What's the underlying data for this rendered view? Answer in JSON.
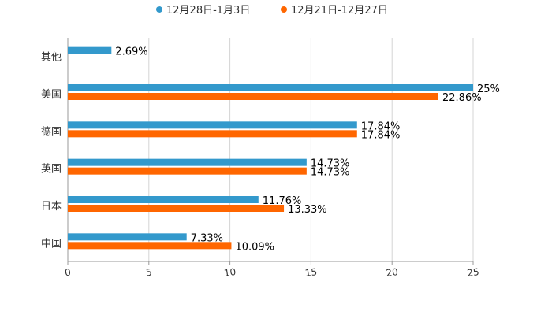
{
  "chart_data": {
    "type": "bar",
    "orientation": "horizontal",
    "categories": [
      "其他",
      "美国",
      "德国",
      "英国",
      "日本",
      "中国"
    ],
    "series": [
      {
        "name": "12月28日-1月3日",
        "color": "#3399cc",
        "values": [
          2.69,
          25,
          17.84,
          14.73,
          11.76,
          7.33
        ],
        "labels": [
          "2.69%",
          "25%",
          "17.84%",
          "14.73%",
          "11.76%",
          "7.33%"
        ]
      },
      {
        "name": "12月21日-12月27日",
        "color": "#ff6600",
        "values": [
          null,
          22.86,
          17.84,
          14.73,
          13.33,
          10.09
        ],
        "labels": [
          null,
          "22.86%",
          "17.84%",
          "14.73%",
          "13.33%",
          "10.09%"
        ]
      }
    ],
    "xlim": [
      0,
      25
    ],
    "xticks": [
      "0",
      "5",
      "10",
      "15",
      "20",
      "25"
    ],
    "grid": true,
    "legend_position": "top-center",
    "title": "",
    "xlabel": "",
    "ylabel": ""
  }
}
